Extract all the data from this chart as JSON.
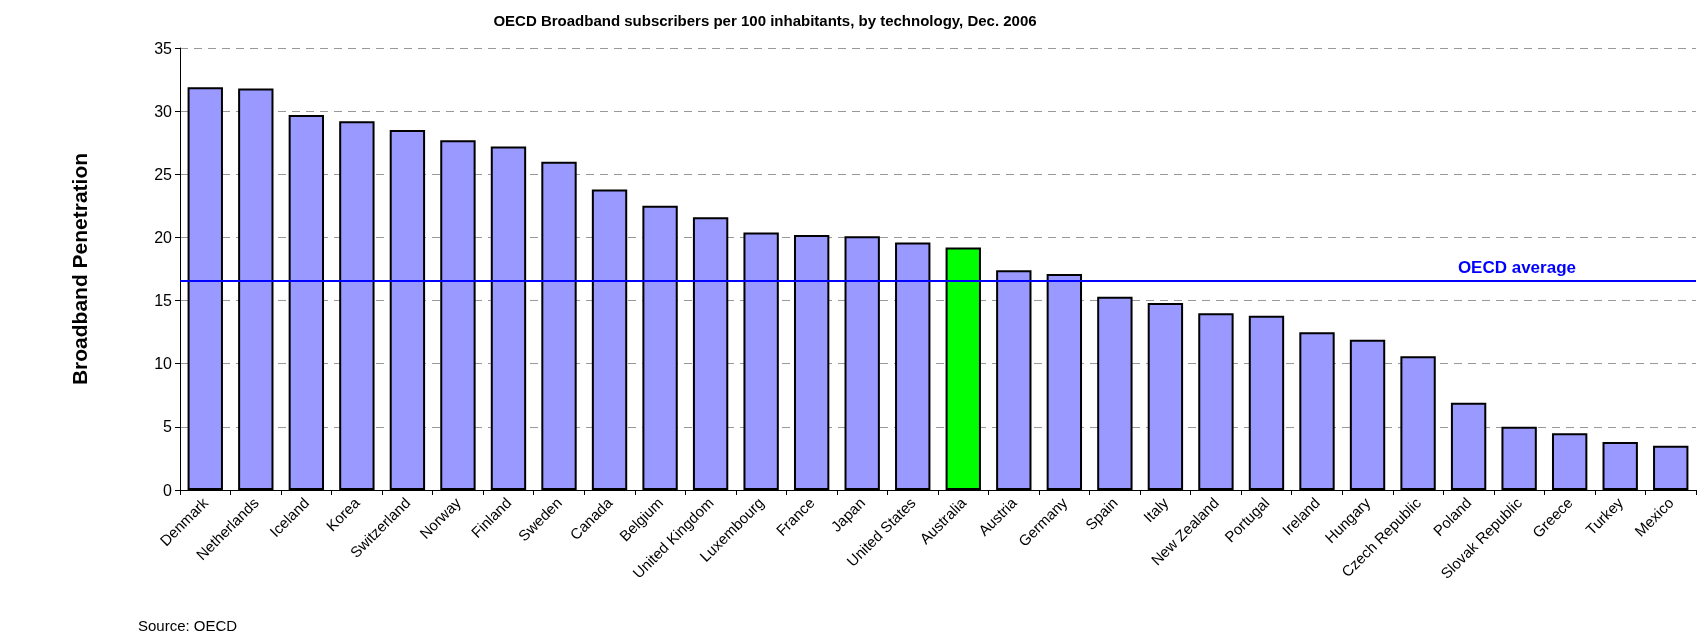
{
  "chart_data": {
    "type": "bar",
    "title": "OECD Broadband subscribers per 100 inhabitants, by technology, Dec. 2006",
    "ylabel": "Broadband Penetration",
    "categories": [
      "Denmark",
      "Netherlands",
      "Iceland",
      "Korea",
      "Switzerland",
      "Norway",
      "Finland",
      "Sweden",
      "Canada",
      "Belgium",
      "United Kingdom",
      "Luxembourg",
      "France",
      "Japan",
      "United States",
      "Australia",
      "Austria",
      "Germany",
      "Spain",
      "Italy",
      "New Zealand",
      "Portugal",
      "Ireland",
      "Hungary",
      "Czech Republic",
      "Poland",
      "Slovak Republic",
      "Greece",
      "Turkey",
      "Mexico"
    ],
    "values": [
      31.9,
      31.8,
      29.7,
      29.2,
      28.5,
      27.7,
      27.2,
      26.0,
      23.8,
      22.5,
      21.6,
      20.4,
      20.2,
      20.1,
      19.6,
      19.2,
      17.4,
      17.1,
      15.3,
      14.8,
      14.0,
      13.8,
      12.5,
      11.9,
      10.6,
      6.9,
      5.0,
      4.5,
      3.8,
      3.5
    ],
    "colors": [
      "#9999ff",
      "#9999ff",
      "#9999ff",
      "#9999ff",
      "#9999ff",
      "#9999ff",
      "#9999ff",
      "#9999ff",
      "#9999ff",
      "#9999ff",
      "#9999ff",
      "#9999ff",
      "#9999ff",
      "#9999ff",
      "#9999ff",
      "#00ff00",
      "#9999ff",
      "#9999ff",
      "#9999ff",
      "#9999ff",
      "#9999ff",
      "#9999ff",
      "#9999ff",
      "#9999ff",
      "#9999ff",
      "#9999ff",
      "#9999ff",
      "#9999ff",
      "#9999ff",
      "#9999ff"
    ],
    "ylim": [
      0,
      35
    ],
    "yticks": [
      0,
      5,
      10,
      15,
      20,
      25,
      30,
      35
    ],
    "grid": "y",
    "ref_lines": [
      {
        "axis": "y",
        "value": 16.6,
        "label": "OECD average",
        "color": "#0000ff"
      }
    ],
    "annotations": [
      "Source: OECD"
    ]
  }
}
